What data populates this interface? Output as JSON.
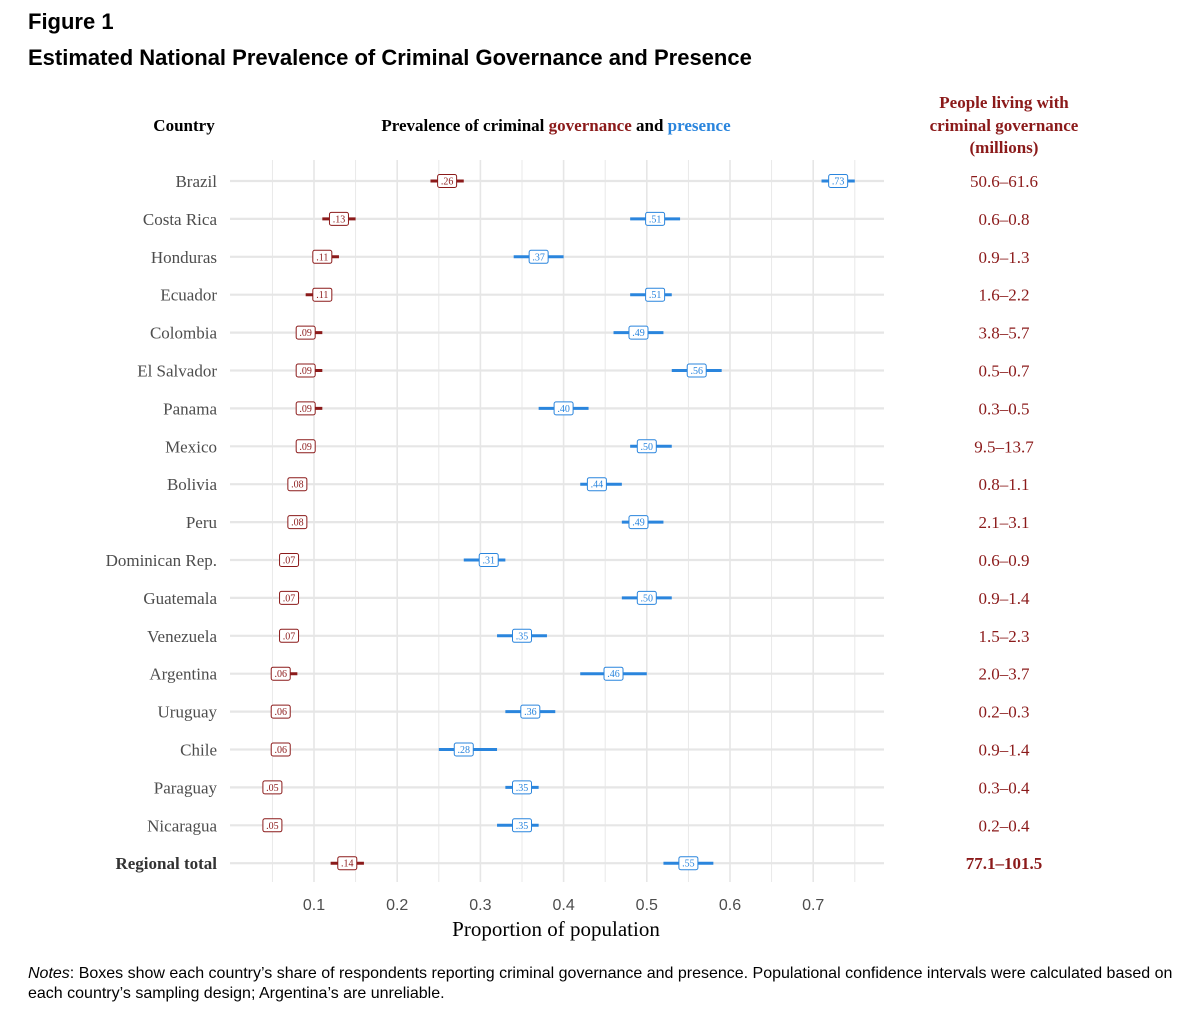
{
  "figure": {
    "label": "Figure 1",
    "title": "Estimated National Prevalence of Criminal Governance and Presence"
  },
  "colors": {
    "governance": "#8b1a1a",
    "presence": "#2a85dd",
    "grid": "#e6e6e6",
    "text": "#333333"
  },
  "headers": {
    "country": "Country",
    "prevalence_prefix": "Prevalence of criminal ",
    "prevalence_governance": "governance",
    "prevalence_and": " and ",
    "prevalence_presence": "presence",
    "people_line1": "People living with",
    "people_line2": "criminal governance",
    "people_line3": "(millions)"
  },
  "notes": {
    "label": "Notes",
    "text": ": Boxes show each country’s share of respondents reporting criminal governance and presence. Populational confidence intervals were calculated based on each country’s sampling design; Argentina’s are unreliable."
  },
  "chart_data": {
    "type": "scatter",
    "xlabel": "Proportion of population",
    "xlim": [
      0.1,
      0.7
    ],
    "xticks": [
      0.1,
      0.2,
      0.3,
      0.4,
      0.5,
      0.6,
      0.7
    ],
    "grid": true,
    "series": [
      {
        "name": "governance"
      },
      {
        "name": "presence"
      }
    ],
    "rows": [
      {
        "country": "Brazil",
        "gov": 0.26,
        "gov_lo": 0.24,
        "gov_hi": 0.28,
        "gov_label": ".26",
        "pres": 0.73,
        "pres_lo": 0.71,
        "pres_hi": 0.75,
        "pres_label": ".73",
        "millions": "50.6–61.6",
        "total": false
      },
      {
        "country": "Costa Rica",
        "gov": 0.13,
        "gov_lo": 0.11,
        "gov_hi": 0.15,
        "gov_label": ".13",
        "pres": 0.51,
        "pres_lo": 0.48,
        "pres_hi": 0.54,
        "pres_label": ".51",
        "millions": "0.6–0.8",
        "total": false
      },
      {
        "country": "Honduras",
        "gov": 0.11,
        "gov_lo": 0.1,
        "gov_hi": 0.13,
        "gov_label": ".11",
        "pres": 0.37,
        "pres_lo": 0.34,
        "pres_hi": 0.4,
        "pres_label": ".37",
        "millions": "0.9–1.3",
        "total": false
      },
      {
        "country": "Ecuador",
        "gov": 0.11,
        "gov_lo": 0.09,
        "gov_hi": 0.12,
        "gov_label": ".11",
        "pres": 0.51,
        "pres_lo": 0.48,
        "pres_hi": 0.53,
        "pres_label": ".51",
        "millions": "1.6–2.2",
        "total": false
      },
      {
        "country": "Colombia",
        "gov": 0.09,
        "gov_lo": 0.08,
        "gov_hi": 0.11,
        "gov_label": ".09",
        "pres": 0.49,
        "pres_lo": 0.46,
        "pres_hi": 0.52,
        "pres_label": ".49",
        "millions": "3.8–5.7",
        "total": false
      },
      {
        "country": "El Salvador",
        "gov": 0.09,
        "gov_lo": 0.08,
        "gov_hi": 0.11,
        "gov_label": ".09",
        "pres": 0.56,
        "pres_lo": 0.53,
        "pres_hi": 0.59,
        "pres_label": ".56",
        "millions": "0.5–0.7",
        "total": false
      },
      {
        "country": "Panama",
        "gov": 0.09,
        "gov_lo": 0.08,
        "gov_hi": 0.11,
        "gov_label": ".09",
        "pres": 0.4,
        "pres_lo": 0.37,
        "pres_hi": 0.43,
        "pres_label": ".40",
        "millions": "0.3–0.5",
        "total": false
      },
      {
        "country": "Mexico",
        "gov": 0.09,
        "gov_lo": 0.08,
        "gov_hi": 0.1,
        "gov_label": ".09",
        "pres": 0.5,
        "pres_lo": 0.48,
        "pres_hi": 0.53,
        "pres_label": ".50",
        "millions": "9.5–13.7",
        "total": false
      },
      {
        "country": "Bolivia",
        "gov": 0.08,
        "gov_lo": 0.07,
        "gov_hi": 0.09,
        "gov_label": ".08",
        "pres": 0.44,
        "pres_lo": 0.42,
        "pres_hi": 0.47,
        "pres_label": ".44",
        "millions": "0.8–1.1",
        "total": false
      },
      {
        "country": "Peru",
        "gov": 0.08,
        "gov_lo": 0.07,
        "gov_hi": 0.09,
        "gov_label": ".08",
        "pres": 0.49,
        "pres_lo": 0.47,
        "pres_hi": 0.52,
        "pres_label": ".49",
        "millions": "2.1–3.1",
        "total": false
      },
      {
        "country": "Dominican Rep.",
        "gov": 0.07,
        "gov_lo": 0.06,
        "gov_hi": 0.08,
        "gov_label": ".07",
        "pres": 0.31,
        "pres_lo": 0.28,
        "pres_hi": 0.33,
        "pres_label": ".31",
        "millions": "0.6–0.9",
        "total": false
      },
      {
        "country": "Guatemala",
        "gov": 0.07,
        "gov_lo": 0.06,
        "gov_hi": 0.08,
        "gov_label": ".07",
        "pres": 0.5,
        "pres_lo": 0.47,
        "pres_hi": 0.53,
        "pres_label": ".50",
        "millions": "0.9–1.4",
        "total": false
      },
      {
        "country": "Venezuela",
        "gov": 0.07,
        "gov_lo": 0.06,
        "gov_hi": 0.08,
        "gov_label": ".07",
        "pres": 0.35,
        "pres_lo": 0.32,
        "pres_hi": 0.38,
        "pres_label": ".35",
        "millions": "1.5–2.3",
        "total": false
      },
      {
        "country": "Argentina",
        "gov": 0.06,
        "gov_lo": 0.05,
        "gov_hi": 0.08,
        "gov_label": ".06",
        "pres": 0.46,
        "pres_lo": 0.42,
        "pres_hi": 0.5,
        "pres_label": ".46",
        "millions": "2.0–3.7",
        "total": false
      },
      {
        "country": "Uruguay",
        "gov": 0.06,
        "gov_lo": 0.05,
        "gov_hi": 0.07,
        "gov_label": ".06",
        "pres": 0.36,
        "pres_lo": 0.33,
        "pres_hi": 0.39,
        "pres_label": ".36",
        "millions": "0.2–0.3",
        "total": false
      },
      {
        "country": "Chile",
        "gov": 0.06,
        "gov_lo": 0.05,
        "gov_hi": 0.07,
        "gov_label": ".06",
        "pres": 0.28,
        "pres_lo": 0.25,
        "pres_hi": 0.32,
        "pres_label": ".28",
        "millions": "0.9–1.4",
        "total": false
      },
      {
        "country": "Paraguay",
        "gov": 0.05,
        "gov_lo": 0.04,
        "gov_hi": 0.06,
        "gov_label": ".05",
        "pres": 0.35,
        "pres_lo": 0.33,
        "pres_hi": 0.37,
        "pres_label": ".35",
        "millions": "0.3–0.4",
        "total": false
      },
      {
        "country": "Nicaragua",
        "gov": 0.05,
        "gov_lo": 0.04,
        "gov_hi": 0.06,
        "gov_label": ".05",
        "pres": 0.35,
        "pres_lo": 0.32,
        "pres_hi": 0.37,
        "pres_label": ".35",
        "millions": "0.2–0.4",
        "total": false
      },
      {
        "country": "Regional total",
        "gov": 0.14,
        "gov_lo": 0.12,
        "gov_hi": 0.16,
        "gov_label": ".14",
        "pres": 0.55,
        "pres_lo": 0.52,
        "pres_hi": 0.58,
        "pres_label": ".55",
        "millions": "77.1–101.5",
        "total": true
      }
    ]
  }
}
